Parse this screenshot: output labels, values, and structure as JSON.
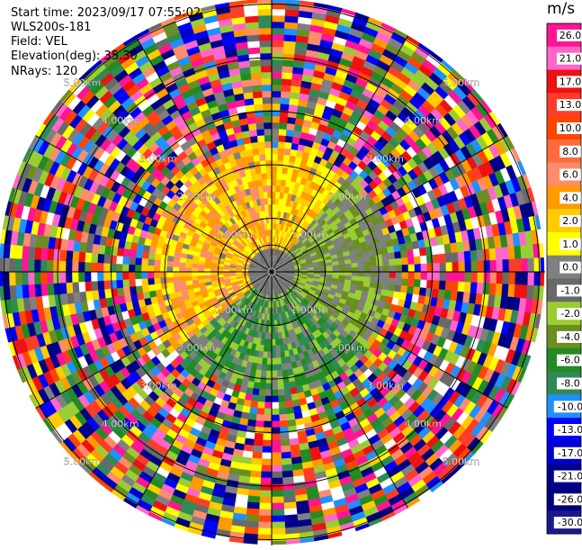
{
  "info": {
    "start_time": "Start time: 2023/09/17 07:55:02",
    "instrument": "WLS200s-181",
    "field": "Field: VEL",
    "elevation": "Elevation(deg): 35.30",
    "nrays": "NRays: 120"
  },
  "colorbar": {
    "unit": "m/s",
    "ticks": [
      "26.0",
      "21.0",
      "17.0",
      "13.0",
      "10.0",
      "8.0",
      "6.0",
      "4.0",
      "2.0",
      "1.0",
      "0.0",
      "-1.0",
      "-2.0",
      "-4.0",
      "-6.0",
      "-8.0",
      "-10.0",
      "-13.0",
      "-17.0",
      "-21.0",
      "-26.0",
      "-30.0"
    ],
    "colors": [
      "#ff1493",
      "#ff66cc",
      "#ee1111",
      "#ff3b2a",
      "#ff4500",
      "#ff6a3c",
      "#ff8c69",
      "#ff9a00",
      "#ffcc00",
      "#ffff00",
      "#808080",
      "#696969",
      "#9acd32",
      "#6b8e23",
      "#228b22",
      "#2e8b57",
      "#1e90ff",
      "#0000ff",
      "#0000cd",
      "#00008b",
      "#000080",
      "#1a1a8c"
    ]
  },
  "chart_data": {
    "type": "ppi",
    "field": "VEL",
    "units": "m/s",
    "elevation_deg": 35.3,
    "nrays": 120,
    "ring_labels": [
      "1.00km",
      "2.00km",
      "3.00km",
      "4.00km",
      "5.00km"
    ],
    "ring_distances_km": [
      1,
      2,
      3,
      4,
      5
    ],
    "spoke_azimuths_deg": [
      0,
      30,
      60,
      90,
      120,
      150,
      180,
      210,
      240,
      270,
      300,
      330
    ],
    "clean_region_max_km": 2.2,
    "noise_beyond_km": 2.2,
    "velocity_by_sector": [
      {
        "azimuth_from": 230,
        "azimuth_to": 360,
        "min_km": 0.3,
        "max_km": 2.2,
        "colors": [
          "#ffcc00",
          "#ff9a00",
          "#ff8c69",
          "#ffff00"
        ]
      },
      {
        "azimuth_from": 0,
        "azimuth_to": 40,
        "min_km": 0.3,
        "max_km": 2.0,
        "colors": [
          "#ffcc00",
          "#ff9a00",
          "#ffff00"
        ]
      },
      {
        "azimuth_from": 40,
        "azimuth_to": 130,
        "min_km": 0.3,
        "max_km": 2.2,
        "colors": [
          "#9acd32",
          "#6b8e23",
          "#808080"
        ]
      },
      {
        "azimuth_from": 130,
        "azimuth_to": 230,
        "min_km": 0.3,
        "max_km": 2.2,
        "colors": [
          "#228b22",
          "#2e8b57",
          "#808080",
          "#9acd32"
        ]
      }
    ]
  }
}
